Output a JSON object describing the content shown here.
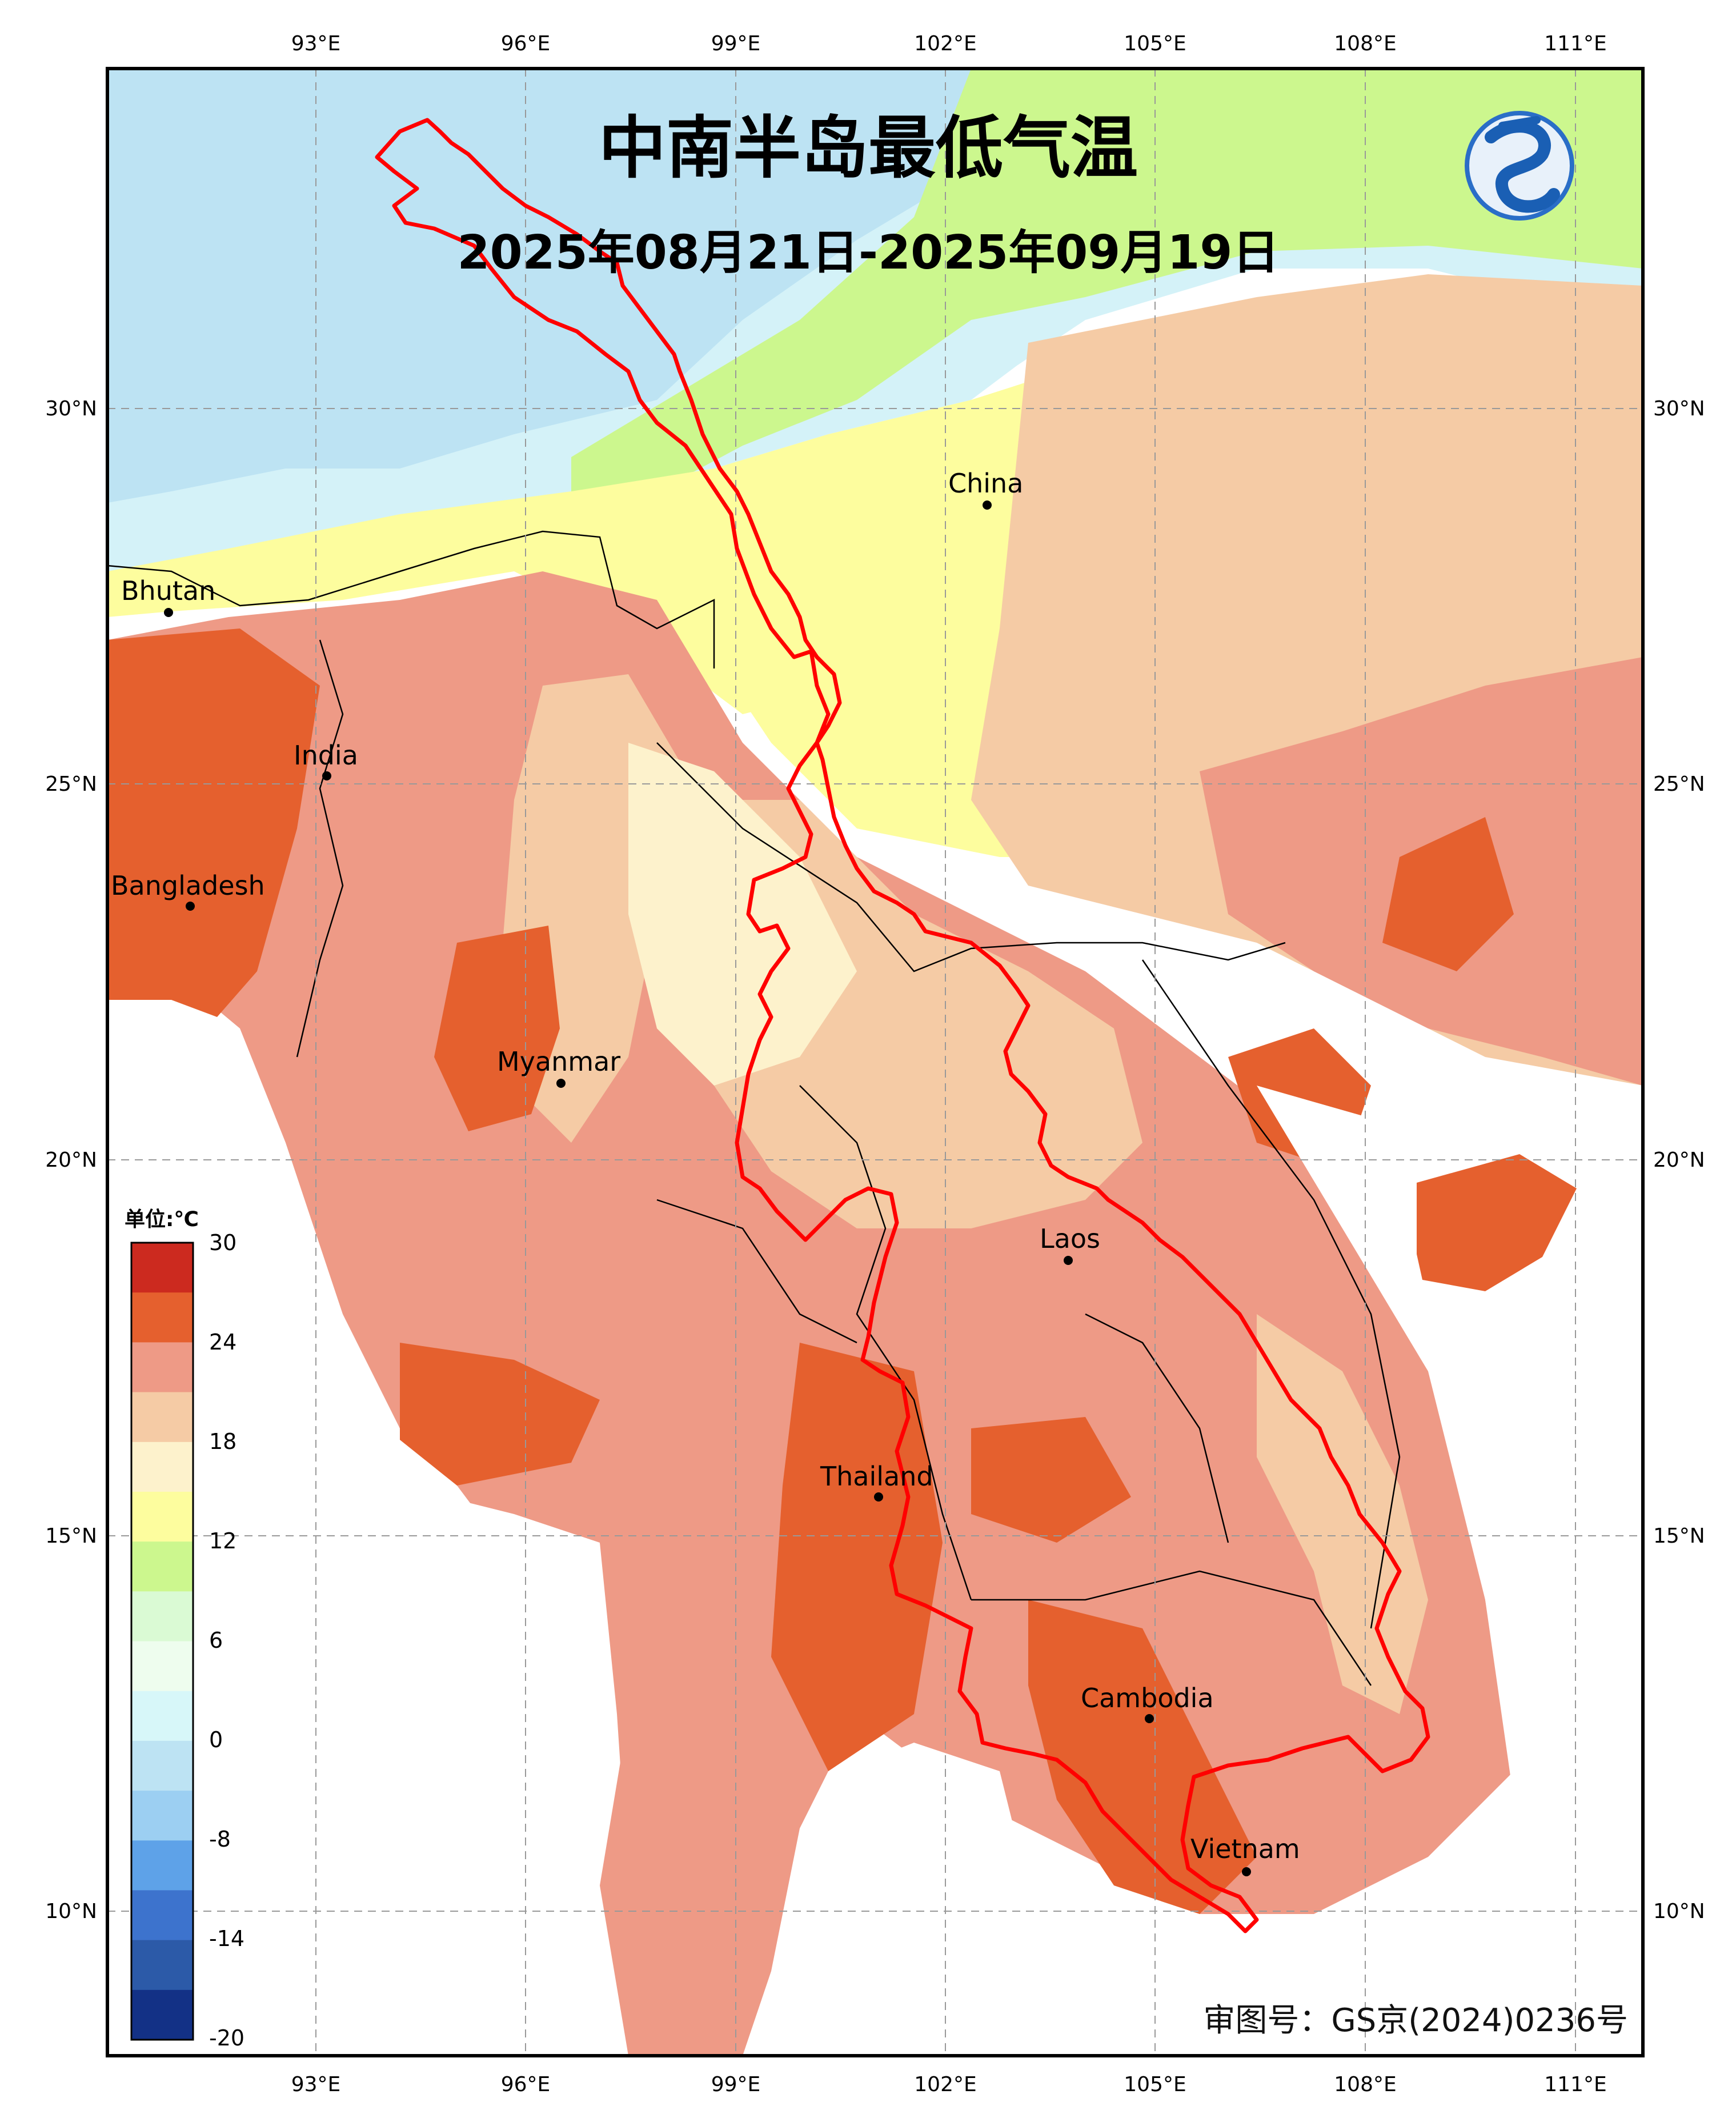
{
  "map": {
    "title": "中南半岛最低气温",
    "subtitle": "2025年08月21日-2025年09月19日",
    "approval_number": "审图号：GS京(2024)0236号",
    "logo_icon": "meteorological-agency-logo-icon",
    "longitude_ticks": [
      "93°E",
      "96°E",
      "99°E",
      "102°E",
      "105°E",
      "108°E",
      "111°E"
    ],
    "latitude_ticks": [
      "30°N",
      "25°N",
      "20°N",
      "15°N",
      "10°N"
    ],
    "countries": [
      "Bhutan",
      "India",
      "Bangladesh",
      "Myanmar",
      "China",
      "Laos",
      "Thailand",
      "Cambodia",
      "Vietnam"
    ],
    "basin_outline_color": "#ff0000",
    "land_border_color": "#000000",
    "gridline_style": "dashed-gray"
  },
  "legend": {
    "unit": "单位:℃",
    "labels": [
      "30",
      "24",
      "18",
      "12",
      "6",
      "0",
      "-8",
      "-14",
      "-20"
    ],
    "colors": [
      "#cc2a1f",
      "#e5602e",
      "#ee9a86",
      "#f5cba5",
      "#fdf2cc",
      "#fdfd9e",
      "#ccf78e",
      "#dafad4",
      "#eefdee",
      "#d7f7f9",
      "#bde3f3",
      "#9ccff2",
      "#5ea2e8",
      "#3d73cd",
      "#2c5aa8",
      "#133186"
    ]
  }
}
